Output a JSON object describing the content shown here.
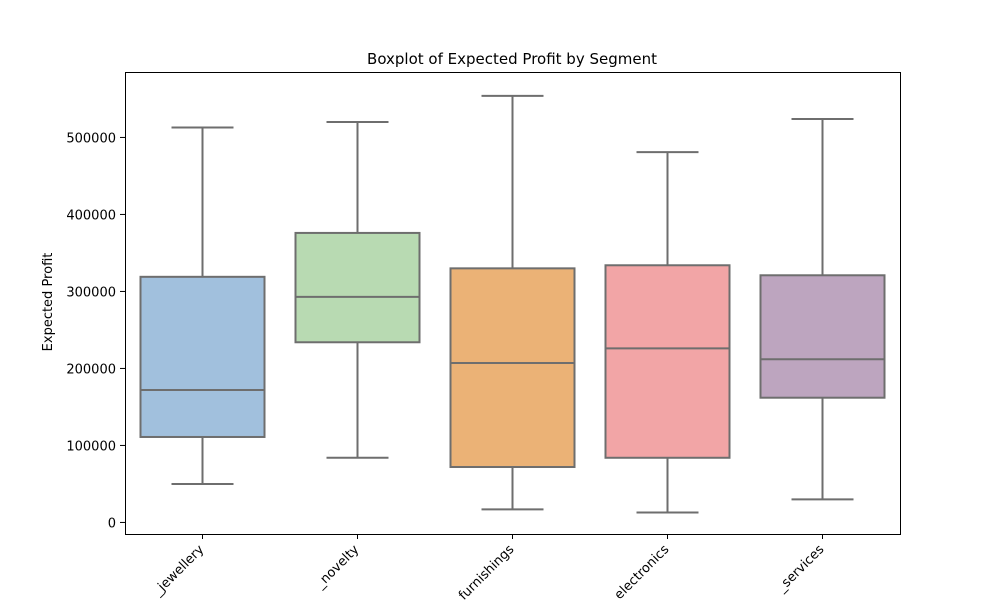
{
  "chart_data": {
    "type": "boxplot",
    "title": "Boxplot of Expected Profit by Segment",
    "xlabel": "",
    "ylabel": "Expected Profit",
    "ylim": [
      -15000,
      585000
    ],
    "yticks": [
      0,
      100000,
      200000,
      300000,
      400000,
      500000
    ],
    "ytick_labels": [
      "0",
      "100000",
      "200000",
      "300000",
      "400000",
      "500000"
    ],
    "grid": false,
    "categories": [
      "_jewellery",
      "_novelty",
      "furnishings",
      "electronics",
      "_services"
    ],
    "boxes": [
      {
        "category": "_jewellery",
        "whisker_low": 50000,
        "q1": 111000,
        "median": 172000,
        "q3": 319000,
        "whisker_high": 513000,
        "color": "#a1c0dd"
      },
      {
        "category": "_novelty",
        "whisker_low": 84000,
        "q1": 234000,
        "median": 293000,
        "q3": 376000,
        "whisker_high": 520000,
        "color": "#b8dab2"
      },
      {
        "category": "furnishings",
        "whisker_low": 17000,
        "q1": 72000,
        "median": 207000,
        "q3": 330000,
        "whisker_high": 554000,
        "color": "#ebb276"
      },
      {
        "category": "electronics",
        "whisker_low": 13000,
        "q1": 84000,
        "median": 226000,
        "q3": 334000,
        "whisker_high": 481000,
        "color": "#f2a5a6"
      },
      {
        "category": "_services",
        "whisker_low": 30000,
        "q1": 162000,
        "median": 212000,
        "q3": 321000,
        "whisker_high": 524000,
        "color": "#bda5bf"
      }
    ],
    "line_color": "#6e6e6e"
  }
}
